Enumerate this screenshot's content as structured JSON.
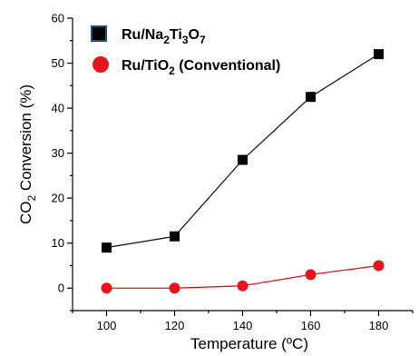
{
  "chart_data": {
    "type": "line",
    "xlabel": "Temperature (ºC)",
    "ylabel": {
      "pre": "CO",
      "sub": "2",
      "post": " Conversion (%)"
    },
    "x": [
      100,
      120,
      140,
      160,
      180
    ],
    "xlim": [
      90,
      190
    ],
    "ylim": [
      -5,
      60
    ],
    "xticks": [
      100,
      120,
      140,
      160,
      180
    ],
    "yticks": [
      0,
      10,
      20,
      30,
      40,
      50,
      60
    ],
    "grid": false,
    "legend_position": "top-left",
    "series": [
      {
        "name": "Ru/Na2Ti3O7",
        "label_parts": [
          {
            "t": "Ru/Na"
          },
          {
            "t": "2",
            "sub": true
          },
          {
            "t": "Ti"
          },
          {
            "t": "3",
            "sub": true
          },
          {
            "t": "O"
          },
          {
            "t": "7",
            "sub": true
          }
        ],
        "marker": "square",
        "color": "#000000",
        "line_color": "#1a1a1a",
        "values": [
          9,
          11.5,
          28.5,
          42.5,
          52
        ]
      },
      {
        "name": "Ru/TiO2 (Conventional)",
        "label_parts": [
          {
            "t": "Ru/TiO"
          },
          {
            "t": "2",
            "sub": true
          },
          {
            "t": " (Conventional)"
          }
        ],
        "marker": "circle",
        "color": "#e8141b",
        "line_color": "#e8141b",
        "values": [
          0,
          0,
          0.5,
          3,
          5
        ]
      }
    ]
  }
}
